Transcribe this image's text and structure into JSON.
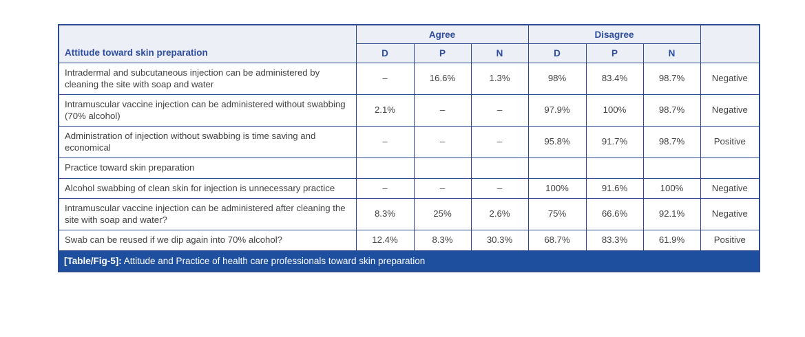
{
  "colors": {
    "table-border": "#2b4a8f",
    "header-bg": "#edeff6",
    "header-text": "#2d4da0",
    "body-text": "#414141",
    "caption-bg": "#1d4f9e",
    "caption-text": "#ffffff"
  },
  "chart_data": {
    "type": "table",
    "first_column_header": "Attitude toward skin preparation",
    "column_groups": [
      {
        "label": "Agree",
        "span": 3
      },
      {
        "label": "Disagree",
        "span": 3
      }
    ],
    "sub_headers": [
      "D",
      "P",
      "N",
      "D",
      "P",
      "N"
    ],
    "rows": [
      {
        "label": "Intradermal and subcutaneous injection can be administered by cleaning the site with soap and water",
        "is_section_header": false,
        "values": [
          "–",
          "16.6%",
          "1.3%",
          "98%",
          "83.4%",
          "98.7%"
        ],
        "assessment": "Negative"
      },
      {
        "label": "Intramuscular vaccine injection can be administered without swabbing (70% alcohol)",
        "is_section_header": false,
        "values": [
          "2.1%",
          "–",
          "–",
          "97.9%",
          "100%",
          "98.7%"
        ],
        "assessment": "Negative"
      },
      {
        "label": "Administration of injection without swabbing is time saving and economical",
        "is_section_header": false,
        "values": [
          "–",
          "–",
          "–",
          "95.8%",
          "91.7%",
          "98.7%"
        ],
        "assessment": "Positive"
      },
      {
        "label": "Practice toward skin preparation",
        "is_section_header": true,
        "values": [
          "",
          "",
          "",
          "",
          "",
          ""
        ],
        "assessment": ""
      },
      {
        "label": "Alcohol swabbing of clean skin for injection is unnecessary practice",
        "is_section_header": false,
        "values": [
          "–",
          "–",
          "–",
          "100%",
          "91.6%",
          "100%"
        ],
        "assessment": "Negative"
      },
      {
        "label": "Intramuscular vaccine injection can be administered after cleaning the site with soap and water?",
        "is_section_header": false,
        "values": [
          "8.3%",
          "25%",
          "2.6%",
          "75%",
          "66.6%",
          "92.1%"
        ],
        "assessment": "Negative"
      },
      {
        "label": "Swab can be reused if we dip again into 70% alcohol?",
        "is_section_header": false,
        "values": [
          "12.4%",
          "8.3%",
          "30.3%",
          "68.7%",
          "83.3%",
          "61.9%"
        ],
        "assessment": "Positive"
      }
    ],
    "caption_tag": "[Table/Fig-5]:",
    "caption_text": " Attitude and Practice of health care professionals toward skin preparation"
  }
}
